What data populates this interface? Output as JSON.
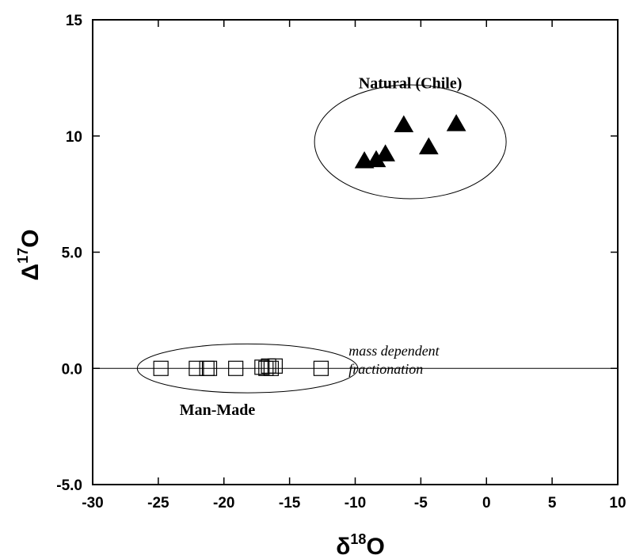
{
  "chart_data": {
    "type": "scatter",
    "xlim": [
      -30,
      10
    ],
    "ylim": [
      -5,
      15
    ],
    "x_ticks": [
      -30,
      -25,
      -20,
      -15,
      -10,
      -5,
      0,
      5,
      10
    ],
    "x_tick_labels": [
      "-30",
      "-25",
      "-20",
      "-15",
      "-10",
      "-5",
      "0",
      "5",
      "10"
    ],
    "y_ticks": [
      -5,
      0,
      5,
      10,
      15
    ],
    "y_tick_labels": [
      "-5.0",
      "0.0",
      "5.0",
      "10",
      "15"
    ],
    "xlabel": {
      "base": "δ",
      "sup": "18",
      "tail": "O"
    },
    "ylabel": {
      "base": "Δ",
      "sup": "17",
      "tail": "O"
    },
    "grid": false,
    "reference_line": {
      "y": 0,
      "label_line1": "mass dependent",
      "label_line2": "fractionation"
    },
    "series": [
      {
        "name": "Natural (Chile)",
        "marker": "filled-triangle",
        "color": "#000000",
        "x": [
          -9.3,
          -8.4,
          -7.7,
          -6.3,
          -4.4,
          -2.3
        ],
        "y": [
          8.9,
          8.95,
          9.2,
          10.45,
          9.5,
          10.5
        ],
        "ellipse": {
          "cx": -5.8,
          "cy": 9.75,
          "rx": 7.3,
          "ry": 2.45
        }
      },
      {
        "name": "Man-Made",
        "marker": "open-square",
        "color": "#000000",
        "x": [
          -24.8,
          -22.1,
          -21.3,
          -21.1,
          -19.1,
          -17.1,
          -16.8,
          -16.6,
          -16.4,
          -16.1,
          -12.6
        ],
        "y": [
          0.0,
          0.0,
          0.0,
          0.0,
          0.0,
          0.05,
          0.0,
          0.1,
          0.0,
          0.1,
          0.0
        ],
        "ellipse": {
          "cx": -18.2,
          "cy": 0.0,
          "rx": 8.4,
          "ry": 1.05
        }
      }
    ],
    "group_label_positions": [
      {
        "x": -5.8,
        "y": 12.05
      },
      {
        "x": -20.5,
        "y": -2.0
      }
    ],
    "reference_label_position": {
      "x": -10.5,
      "y": 0.55
    }
  }
}
